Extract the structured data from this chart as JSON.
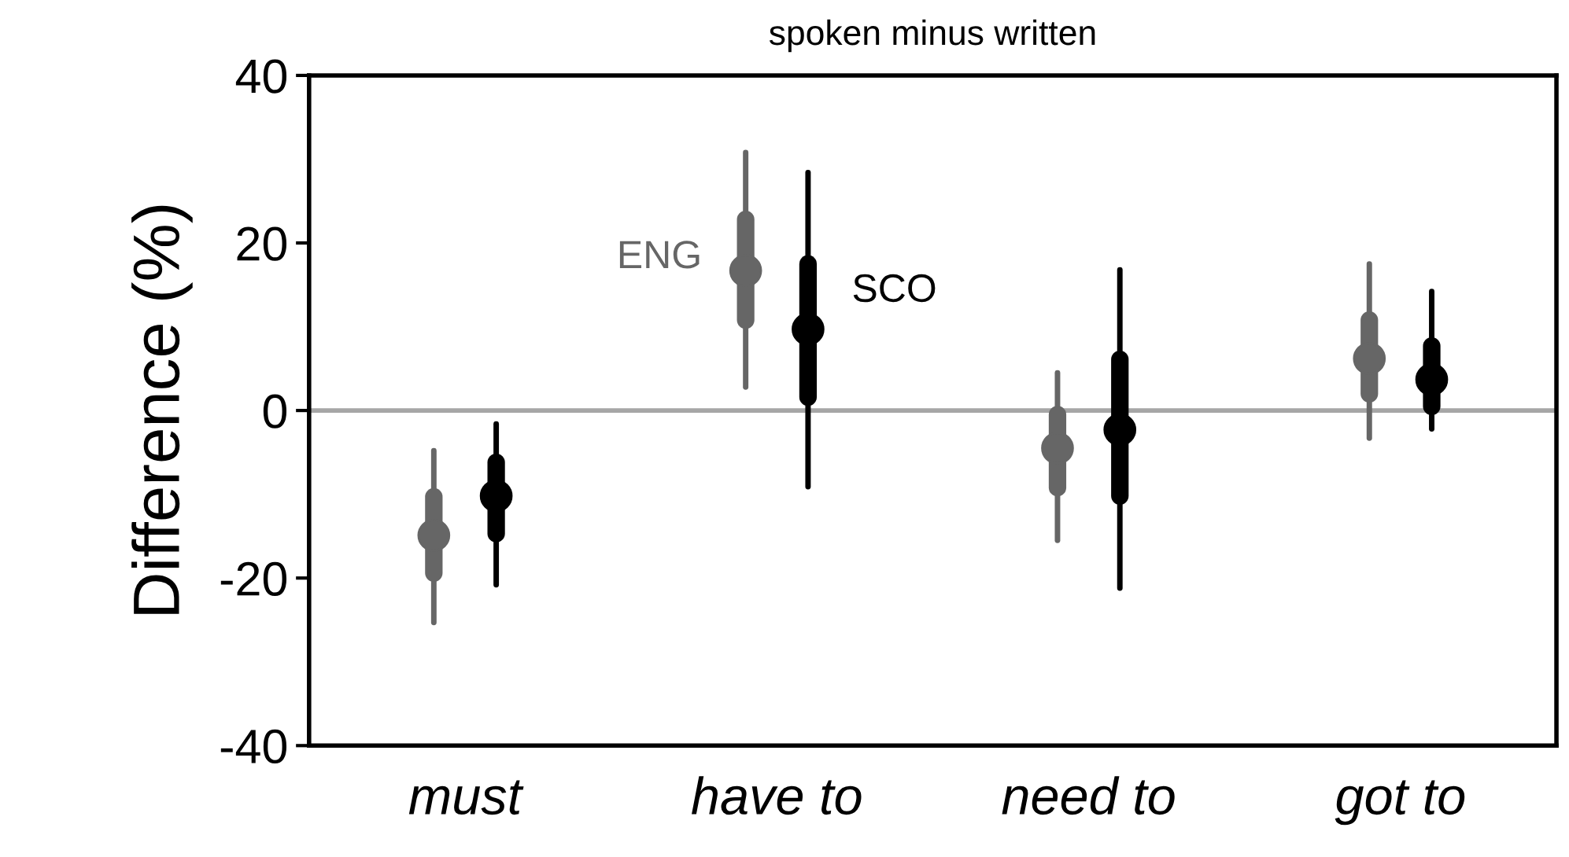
{
  "chart_data": {
    "type": "scatter",
    "title": "spoken minus written",
    "ylabel": "Difference (%)",
    "categories": [
      "must",
      "have to",
      "need to",
      "got to"
    ],
    "ylim": [
      -40,
      40
    ],
    "yticks": [
      -40,
      -20,
      0,
      20,
      40
    ],
    "grid": false,
    "marker": "circle",
    "ref_lines": [
      {
        "axis": "y",
        "value": 0,
        "color": "#a6a6a6"
      }
    ],
    "series": [
      {
        "name": "ENG",
        "type": "scatter",
        "color": "#666666",
        "values": [
          -14.9,
          16.7,
          -4.5,
          6.2
        ],
        "errors": [
          [
            -25.3,
            -4.8
          ],
          [
            2.8,
            30.8
          ],
          [
            -15.5,
            4.5
          ],
          [
            -3.3,
            17.5
          ]
        ]
      },
      {
        "name": "SCO",
        "type": "scatter",
        "color": "#000000",
        "values": [
          -10.2,
          9.7,
          -2.3,
          3.7
        ],
        "errors": [
          [
            -20.8,
            -1.6
          ],
          [
            -9.1,
            28.4
          ],
          [
            -21.2,
            16.8
          ],
          [
            -2.2,
            14.2
          ]
        ]
      },
      {
        "type": "bar",
        "color": "#666666",
        "base": [
          -19.4,
          10.8,
          -9.2,
          2.0
        ],
        "values": [
          9.1,
          12.0,
          8.7,
          8.8
        ]
      },
      {
        "type": "bar",
        "color": "#000000",
        "base": [
          -14.7,
          1.6,
          -10.2,
          0.5
        ],
        "values": [
          8.5,
          15.9,
          16.3,
          7.2
        ]
      }
    ]
  }
}
